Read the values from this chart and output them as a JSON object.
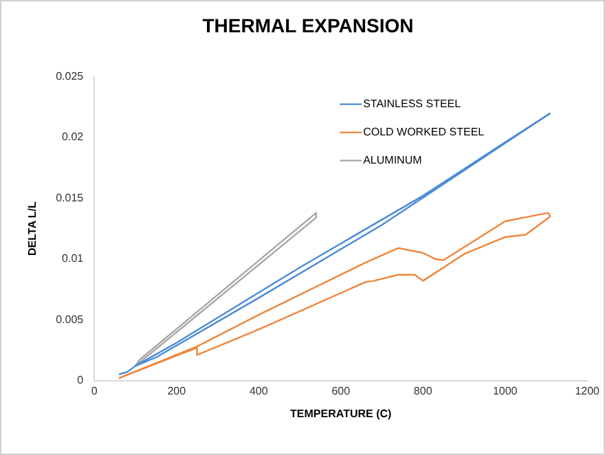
{
  "chart_data": {
    "type": "line",
    "title": "THERMAL EXPANSION",
    "xlabel": "TEMPERATURE (C)",
    "ylabel": "DELTA L/L",
    "xlim": [
      0,
      1200
    ],
    "xticks": [
      0,
      200,
      400,
      600,
      800,
      1000,
      1200
    ],
    "ylim": [
      0,
      0.025
    ],
    "yticks": [
      0,
      0.005,
      0.01,
      0.015,
      0.02,
      0.025
    ],
    "grid": false,
    "legend": "top right",
    "marker": "none",
    "line_style": "solid",
    "series": [
      {
        "name": "STAINLESS STEEL",
        "color": "#4a8ad4",
        "x": [
          60,
          80,
          100,
          150,
          400,
          700,
          1110
        ],
        "values": [
          0.0005,
          0.0007,
          0.0012,
          0.0019,
          0.0068,
          0.0128,
          0.022
        ]
      },
      {
        "color": "#4a8ad4",
        "x": [
          1110,
          1000,
          800,
          500,
          200,
          100
        ],
        "values": [
          0.022,
          0.0196,
          0.0152,
          0.0093,
          0.0031,
          0.0012
        ]
      },
      {
        "name": "COLD WORKED STEEL",
        "color": "#f0853a",
        "x": [
          60,
          250,
          250,
          400,
          660,
          680,
          740,
          780,
          800,
          900,
          1000,
          1050,
          1110
        ],
        "values": [
          0.0002,
          0.0027,
          0.0021,
          0.0042,
          0.0081,
          0.0082,
          0.0087,
          0.0087,
          0.0082,
          0.0104,
          0.0118,
          0.012,
          0.0135
        ]
      },
      {
        "color": "#f0853a",
        "x": [
          1110,
          1105,
          1000,
          850,
          830,
          800,
          740,
          660,
          400,
          250,
          60
        ],
        "values": [
          0.0135,
          0.0138,
          0.0131,
          0.0099,
          0.01,
          0.0105,
          0.0109,
          0.0097,
          0.0054,
          0.0028,
          0.0002
        ]
      },
      {
        "name": "ALUMINUM",
        "color": "#a6a6a6",
        "x": [
          100,
          540
        ],
        "values": [
          0.0012,
          0.0134
        ]
      },
      {
        "color": "#a6a6a6",
        "x": [
          540,
          540,
          110,
          100
        ],
        "values": [
          0.0134,
          0.0138,
          0.0017,
          0.0012
        ]
      }
    ]
  }
}
